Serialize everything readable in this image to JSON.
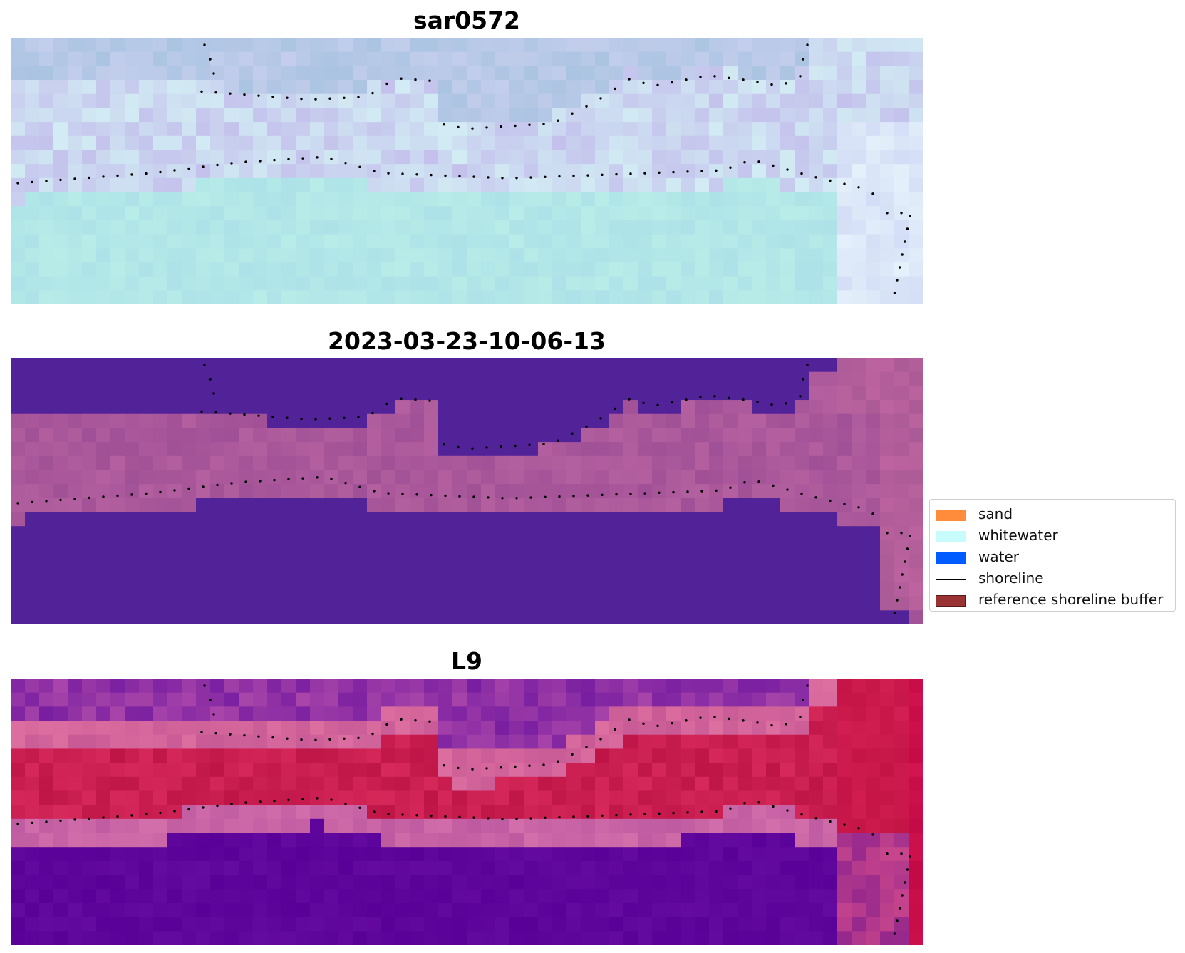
{
  "panels": [
    {
      "title": "sar0572",
      "scheme": "rgb"
    },
    {
      "title": "2023-03-23-10-06-13",
      "scheme": "classified"
    },
    {
      "title": "L9",
      "scheme": "index"
    }
  ],
  "legend": [
    {
      "label": "sand",
      "color": "#ff8c3a",
      "kind": "patch"
    },
    {
      "label": "whitewater",
      "color": "#c8fcfc",
      "kind": "patch"
    },
    {
      "label": "water",
      "color": "#005cff",
      "kind": "patch"
    },
    {
      "label": "shoreline",
      "color": "#000000",
      "kind": "line"
    },
    {
      "label": "reference shoreline buffer",
      "color": "#993333",
      "kind": "patch"
    }
  ]
}
